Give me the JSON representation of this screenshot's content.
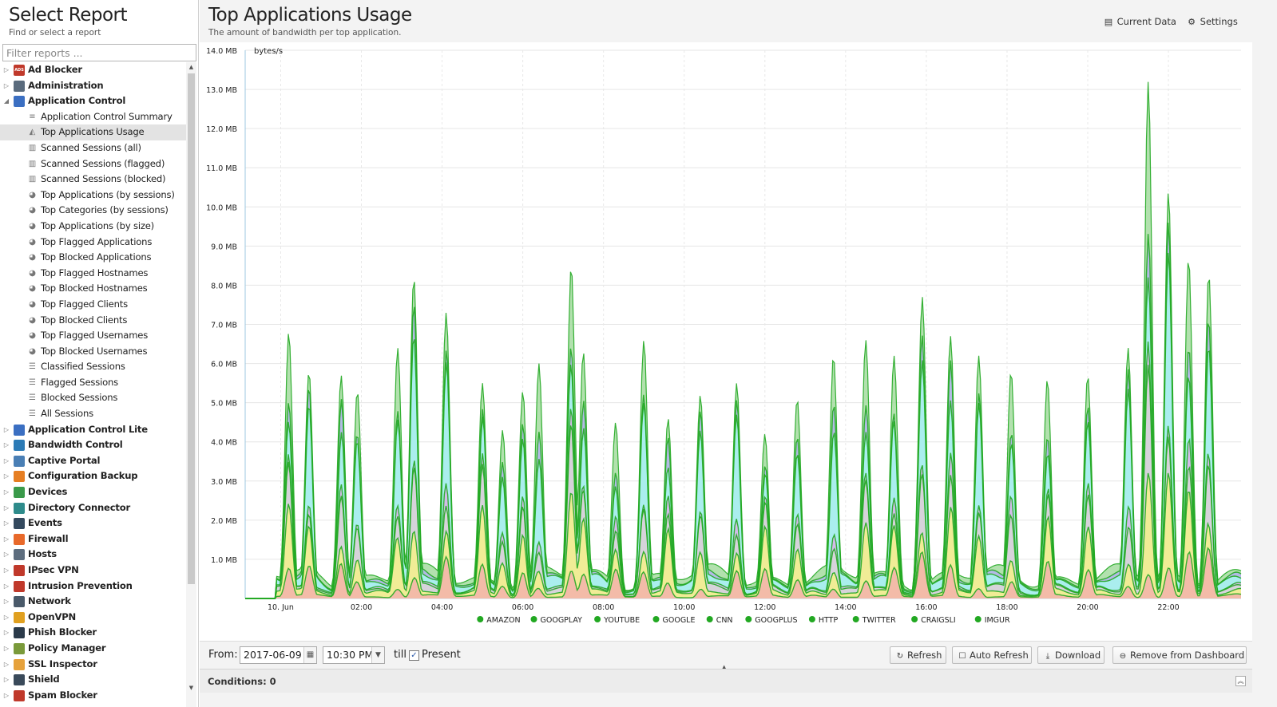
{
  "left_panel": {
    "title": "Select Report",
    "subtitle": "Find or select a report",
    "filter_placeholder": "Filter reports ...",
    "tree": [
      {
        "label": "Ad Blocker",
        "expanded": false,
        "icon": "ad-blocker-icon",
        "color": "#c0392b",
        "icon_text": "ADS"
      },
      {
        "label": "Administration",
        "expanded": false,
        "icon": "administration-icon",
        "color": "#5a6b7d",
        "icon_text": ""
      },
      {
        "label": "Application Control",
        "expanded": true,
        "icon": "application-control-icon",
        "color": "#3b6fc2",
        "icon_text": "",
        "children": [
          {
            "label": "Application Control Summary",
            "icon": "text-lines-icon",
            "glyph": "≡"
          },
          {
            "label": "Top Applications Usage",
            "icon": "area-chart-icon",
            "glyph": "◭",
            "selected": true
          },
          {
            "label": "Scanned Sessions (all)",
            "icon": "bar-chart-icon",
            "glyph": "▥"
          },
          {
            "label": "Scanned Sessions (flagged)",
            "icon": "bar-chart-icon",
            "glyph": "▥"
          },
          {
            "label": "Scanned Sessions (blocked)",
            "icon": "bar-chart-icon",
            "glyph": "▥"
          },
          {
            "label": "Top Applications (by sessions)",
            "icon": "pie-chart-icon",
            "glyph": "◕"
          },
          {
            "label": "Top Categories (by sessions)",
            "icon": "pie-chart-icon",
            "glyph": "◕"
          },
          {
            "label": "Top Applications (by size)",
            "icon": "pie-chart-icon",
            "glyph": "◕"
          },
          {
            "label": "Top Flagged Applications",
            "icon": "pie-chart-icon",
            "glyph": "◕"
          },
          {
            "label": "Top Blocked Applications",
            "icon": "pie-chart-icon",
            "glyph": "◕"
          },
          {
            "label": "Top Flagged Hostnames",
            "icon": "pie-chart-icon",
            "glyph": "◕"
          },
          {
            "label": "Top Blocked Hostnames",
            "icon": "pie-chart-icon",
            "glyph": "◕"
          },
          {
            "label": "Top Flagged Clients",
            "icon": "pie-chart-icon",
            "glyph": "◕"
          },
          {
            "label": "Top Blocked Clients",
            "icon": "pie-chart-icon",
            "glyph": "◕"
          },
          {
            "label": "Top Flagged Usernames",
            "icon": "pie-chart-icon",
            "glyph": "◕"
          },
          {
            "label": "Top Blocked Usernames",
            "icon": "pie-chart-icon",
            "glyph": "◕"
          },
          {
            "label": "Classified Sessions",
            "icon": "list-icon",
            "glyph": "☰"
          },
          {
            "label": "Flagged Sessions",
            "icon": "list-icon",
            "glyph": "☰"
          },
          {
            "label": "Blocked Sessions",
            "icon": "list-icon",
            "glyph": "☰"
          },
          {
            "label": "All Sessions",
            "icon": "list-icon",
            "glyph": "☰"
          }
        ]
      },
      {
        "label": "Application Control Lite",
        "expanded": false,
        "icon": "application-control-lite-icon",
        "color": "#3b6fc2",
        "icon_text": ""
      },
      {
        "label": "Bandwidth Control",
        "expanded": false,
        "icon": "bandwidth-control-icon",
        "color": "#2c7bb6",
        "icon_text": ""
      },
      {
        "label": "Captive Portal",
        "expanded": false,
        "icon": "captive-portal-icon",
        "color": "#4a7fb5",
        "icon_text": ""
      },
      {
        "label": "Configuration Backup",
        "expanded": false,
        "icon": "configuration-backup-icon",
        "color": "#e67e22",
        "icon_text": ""
      },
      {
        "label": "Devices",
        "expanded": false,
        "icon": "devices-icon",
        "color": "#3a9a4a",
        "icon_text": ""
      },
      {
        "label": "Directory Connector",
        "expanded": false,
        "icon": "directory-connector-icon",
        "color": "#2e8b8b",
        "icon_text": ""
      },
      {
        "label": "Events",
        "expanded": false,
        "icon": "events-icon",
        "color": "#34495e",
        "icon_text": ""
      },
      {
        "label": "Firewall",
        "expanded": false,
        "icon": "firewall-icon",
        "color": "#e8692a",
        "icon_text": ""
      },
      {
        "label": "Hosts",
        "expanded": false,
        "icon": "hosts-icon",
        "color": "#5d6d7e",
        "icon_text": ""
      },
      {
        "label": "IPsec VPN",
        "expanded": false,
        "icon": "ipsec-vpn-icon",
        "color": "#c0392b",
        "icon_text": ""
      },
      {
        "label": "Intrusion Prevention",
        "expanded": false,
        "icon": "intrusion-prevention-icon",
        "color": "#c0392b",
        "icon_text": ""
      },
      {
        "label": "Network",
        "expanded": false,
        "icon": "network-icon",
        "color": "#4a5a6a",
        "icon_text": ""
      },
      {
        "label": "OpenVPN",
        "expanded": false,
        "icon": "openvpn-icon",
        "color": "#e0a020",
        "icon_text": ""
      },
      {
        "label": "Phish Blocker",
        "expanded": false,
        "icon": "phish-blocker-icon",
        "color": "#2b3a4a",
        "icon_text": ""
      },
      {
        "label": "Policy Manager",
        "expanded": false,
        "icon": "policy-manager-icon",
        "color": "#7a9a3a",
        "icon_text": ""
      },
      {
        "label": "SSL Inspector",
        "expanded": false,
        "icon": "ssl-inspector-icon",
        "color": "#e6a23c",
        "icon_text": ""
      },
      {
        "label": "Shield",
        "expanded": false,
        "icon": "shield-icon",
        "color": "#3a4a5a",
        "icon_text": ""
      },
      {
        "label": "Spam Blocker",
        "expanded": false,
        "icon": "spam-blocker-icon",
        "color": "#c0392b",
        "icon_text": ""
      }
    ]
  },
  "report": {
    "title": "Top Applications Usage",
    "subtitle": "The amount of bandwidth per top application.",
    "current_data_label": "Current Data",
    "settings_label": "Settings"
  },
  "chart_data": {
    "type": "area",
    "stacked": true,
    "ylabel": "bytes/s",
    "ylim": [
      0,
      14
    ],
    "y_unit": "MB",
    "y_ticks": [
      "1.0 MB",
      "2.0 MB",
      "3.0 MB",
      "4.0 MB",
      "5.0 MB",
      "6.0 MB",
      "7.0 MB",
      "8.0 MB",
      "9.0 MB",
      "10.0 MB",
      "11.0 MB",
      "12.0 MB",
      "13.0 MB",
      "14.0 MB"
    ],
    "x_range_hours": [
      -0.88,
      23.8
    ],
    "x_ticks": [
      "10. Jun",
      "02:00",
      "04:00",
      "06:00",
      "08:00",
      "10:00",
      "12:00",
      "14:00",
      "16:00",
      "18:00",
      "20:00",
      "22:00"
    ],
    "grid": true,
    "legend_position": "bottom",
    "series": [
      {
        "name": "AMAZON",
        "color": "#f3b3ab"
      },
      {
        "name": "GOOGPLAY",
        "color": "#f5f08a"
      },
      {
        "name": "YOUTUBE",
        "color": "#d7d7d7"
      },
      {
        "name": "GOOGLE",
        "color": "#d9b3e6"
      },
      {
        "name": "CNN",
        "color": "#a8f7f0"
      },
      {
        "name": "GOOGPLUS",
        "color": "#b3b3ee"
      },
      {
        "name": "HTTP",
        "color": "#a5dca0"
      },
      {
        "name": "TWITTER",
        "color": "#ffffff"
      },
      {
        "name": "CRAIGSLI",
        "color": "#ffffff"
      },
      {
        "name": "IMGUR",
        "color": "#ffffff"
      }
    ],
    "line_color": "#22a822",
    "total_peaks_mb": [
      {
        "hour": 0.2,
        "value": 6.8
      },
      {
        "hour": 0.7,
        "value": 5.8
      },
      {
        "hour": 1.5,
        "value": 5.7
      },
      {
        "hour": 1.9,
        "value": 5.3
      },
      {
        "hour": 2.9,
        "value": 6.4
      },
      {
        "hour": 3.3,
        "value": 8.2
      },
      {
        "hour": 4.1,
        "value": 7.3
      },
      {
        "hour": 5.0,
        "value": 5.5
      },
      {
        "hour": 5.5,
        "value": 4.3
      },
      {
        "hour": 6.0,
        "value": 5.3
      },
      {
        "hour": 6.4,
        "value": 6.0
      },
      {
        "hour": 7.2,
        "value": 8.5
      },
      {
        "hour": 7.5,
        "value": 6.3
      },
      {
        "hour": 8.3,
        "value": 4.5
      },
      {
        "hour": 9.0,
        "value": 6.6
      },
      {
        "hour": 9.6,
        "value": 4.6
      },
      {
        "hour": 10.4,
        "value": 5.2
      },
      {
        "hour": 11.3,
        "value": 5.5
      },
      {
        "hour": 12.0,
        "value": 4.2
      },
      {
        "hour": 12.8,
        "value": 5.1
      },
      {
        "hour": 13.7,
        "value": 6.2
      },
      {
        "hour": 14.5,
        "value": 6.6
      },
      {
        "hour": 15.2,
        "value": 6.2
      },
      {
        "hour": 15.9,
        "value": 7.7
      },
      {
        "hour": 16.6,
        "value": 6.7
      },
      {
        "hour": 17.3,
        "value": 6.2
      },
      {
        "hour": 18.1,
        "value": 5.8
      },
      {
        "hour": 19.0,
        "value": 5.6
      },
      {
        "hour": 20.0,
        "value": 5.7
      },
      {
        "hour": 21.0,
        "value": 6.4
      },
      {
        "hour": 21.5,
        "value": 13.2
      },
      {
        "hour": 22.0,
        "value": 10.4
      },
      {
        "hour": 22.5,
        "value": 8.7
      },
      {
        "hour": 23.0,
        "value": 8.3
      }
    ]
  },
  "toolbar": {
    "from_label": "From:",
    "date_value": "2017-06-09",
    "time_value": "10:30 PM",
    "till_label": "till",
    "present_label": "Present",
    "present_checked": true,
    "refresh_label": "Refresh",
    "auto_refresh_label": "Auto Refresh",
    "download_label": "Download",
    "remove_label": "Remove from Dashboard"
  },
  "conditions": {
    "label": "Conditions: 0"
  }
}
